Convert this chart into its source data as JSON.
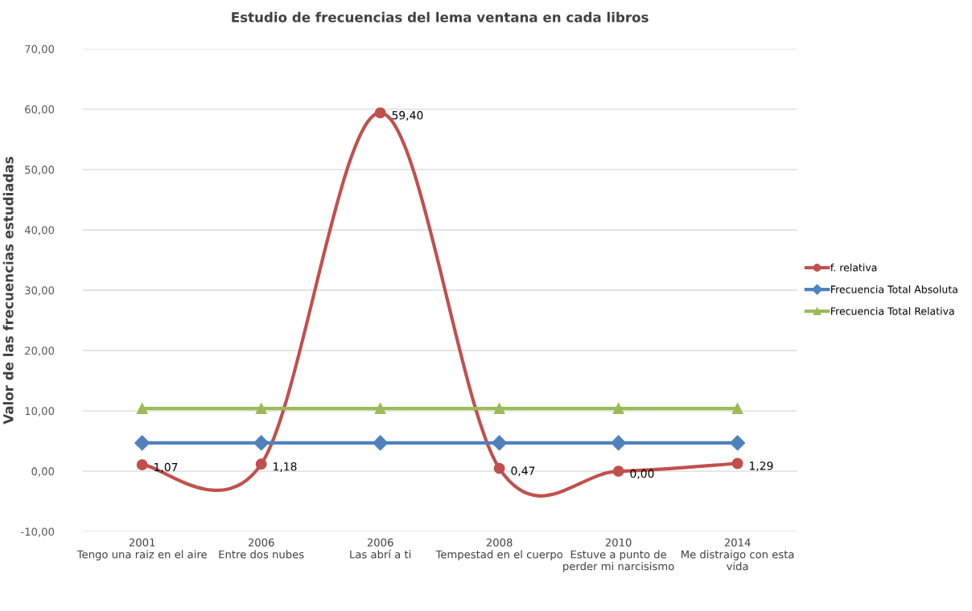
{
  "chart_data": {
    "type": "line",
    "title": "Estudio de frecuencias del lema ventana en cada libros",
    "ylabel": "Valor de las frecuencias estudiadas",
    "categories": [
      "2001\nTengo una raiz en el aire",
      "2006\nEntre dos nubes",
      "2006\nLas abrí a ti",
      "2008\nTempestad en el cuerpo",
      "2010\nEstuve a punto de\nperder mi narcisismo",
      "2014\nMe distraigo con esta\nvida"
    ],
    "series": [
      {
        "name": "f. relativa",
        "color": "#c0504d",
        "marker": "circle",
        "values": [
          1.07,
          1.18,
          59.4,
          0.47,
          0.0,
          1.29
        ],
        "value_labels": [
          "1,07",
          "1,18",
          "59,40",
          "0,47",
          "0,00",
          "1,29"
        ]
      },
      {
        "name": "Frecuencia Total Absoluta",
        "color": "#4f81bd",
        "marker": "diamond",
        "values": [
          4.7,
          4.7,
          4.7,
          4.7,
          4.7,
          4.7
        ]
      },
      {
        "name": "Frecuencia Total Relativa",
        "color": "#9bbb59",
        "marker": "triangle",
        "values": [
          10.4,
          10.4,
          10.4,
          10.4,
          10.4,
          10.4
        ]
      }
    ],
    "ylim": [
      -10,
      70
    ],
    "yticks": [
      {
        "value": -10,
        "label": "-10,00"
      },
      {
        "value": 0,
        "label": "0,00"
      },
      {
        "value": 10,
        "label": "10,00"
      },
      {
        "value": 20,
        "label": "20,00"
      },
      {
        "value": 30,
        "label": "30,00"
      },
      {
        "value": 40,
        "label": "40,00"
      },
      {
        "value": 50,
        "label": "50,00"
      },
      {
        "value": 60,
        "label": "60,00"
      },
      {
        "value": 70,
        "label": "70,00"
      }
    ],
    "grid": "y",
    "legend": "right",
    "line_style": "solid"
  }
}
